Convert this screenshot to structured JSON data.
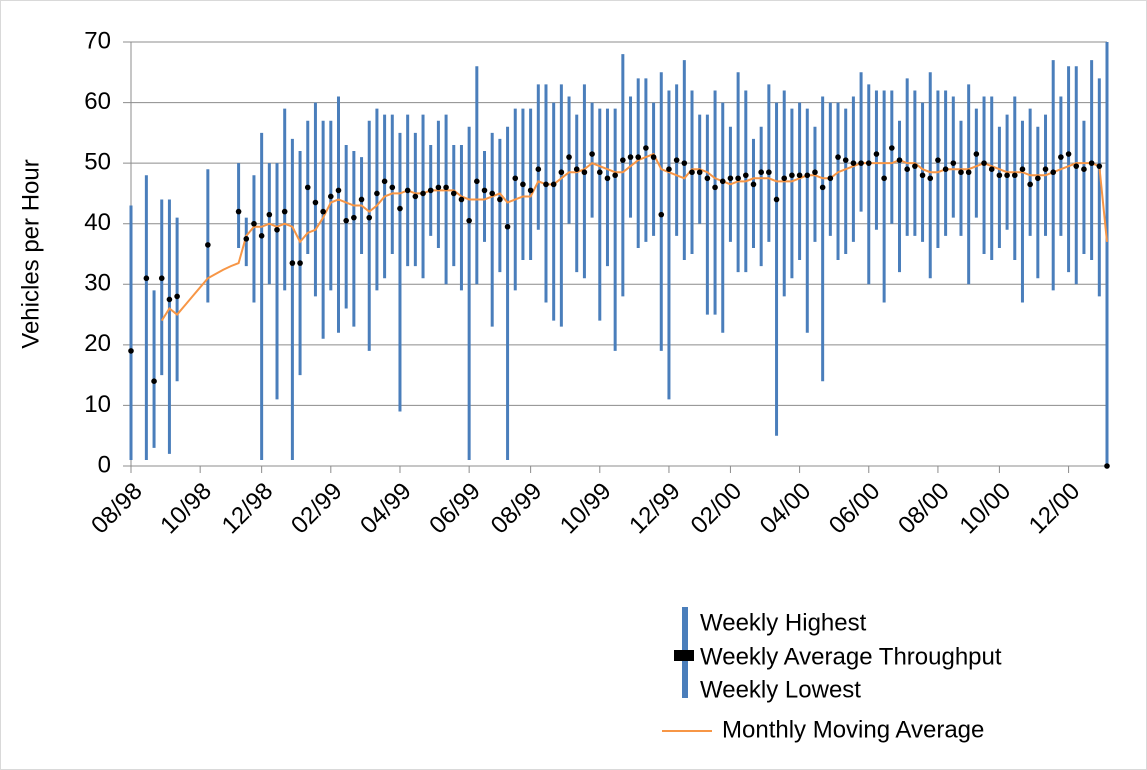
{
  "chart_data": {
    "type": "stock",
    "y_label": "Vehicles per Hour",
    "ylim": [
      0,
      70
    ],
    "yticks": [
      0,
      10,
      20,
      30,
      40,
      50,
      60,
      70
    ],
    "grid": true,
    "categories": [
      "08/98",
      null,
      null,
      null,
      null,
      null,
      null,
      null,
      null,
      "10/98",
      null,
      null,
      null,
      null,
      null,
      null,
      null,
      "12/98",
      null,
      null,
      null,
      null,
      null,
      null,
      null,
      null,
      "02/99",
      null,
      null,
      null,
      null,
      null,
      null,
      null,
      null,
      "04/99",
      null,
      null,
      null,
      null,
      null,
      null,
      null,
      null,
      "06/99",
      null,
      null,
      null,
      null,
      null,
      null,
      null,
      "08/99",
      null,
      null,
      null,
      null,
      null,
      null,
      null,
      null,
      "10/99",
      null,
      null,
      null,
      null,
      null,
      null,
      null,
      null,
      "12/99",
      null,
      null,
      null,
      null,
      null,
      null,
      null,
      "02/00",
      null,
      null,
      null,
      null,
      null,
      null,
      null,
      null,
      "04/00",
      null,
      null,
      null,
      null,
      null,
      null,
      null,
      null,
      "06/00",
      null,
      null,
      null,
      null,
      null,
      null,
      null,
      null,
      "08/00",
      null,
      null,
      null,
      null,
      null,
      null,
      null,
      "10/00",
      null,
      null,
      null,
      null,
      null,
      null,
      null,
      null,
      "12/00",
      null,
      null,
      null,
      null,
      null
    ],
    "series": [
      {
        "name": "Weekly Highest",
        "color": "#4a7ebb",
        "values": [
          43,
          null,
          48,
          29,
          44,
          44,
          41,
          null,
          null,
          null,
          49,
          null,
          null,
          null,
          50,
          41,
          48,
          55,
          50,
          50,
          59,
          54,
          52,
          57,
          60,
          57,
          57,
          61,
          53,
          52,
          51,
          57,
          59,
          58,
          58,
          55,
          58,
          55,
          58,
          53,
          57,
          58,
          53,
          53,
          56,
          66,
          52,
          55,
          54,
          56,
          59,
          59,
          59,
          63,
          63,
          60,
          63,
          61,
          58,
          63,
          60,
          59,
          59,
          59,
          68,
          61,
          64,
          64,
          60,
          65,
          62,
          63,
          67,
          62,
          58,
          58,
          62,
          60,
          56,
          65,
          62,
          54,
          56,
          63,
          60,
          62,
          59,
          60,
          59,
          56,
          61,
          60,
          60,
          59,
          61,
          65,
          63,
          62,
          62,
          62,
          57,
          64,
          62,
          60,
          65,
          62,
          62,
          61,
          57,
          63,
          59,
          61,
          61,
          56,
          58,
          61,
          57,
          59,
          56,
          58,
          67,
          61,
          66,
          66,
          57,
          67,
          64,
          70
        ]
      },
      {
        "name": "Weekly Average Throughput",
        "color": "#000000",
        "values": [
          19,
          null,
          31,
          14,
          31,
          27.5,
          28,
          null,
          null,
          null,
          36.5,
          null,
          null,
          null,
          42,
          37.5,
          40,
          38,
          41.5,
          39,
          42,
          33.5,
          33.5,
          46,
          43.5,
          42,
          44.5,
          45.5,
          40.5,
          41,
          44,
          41,
          45,
          47,
          46,
          42.5,
          45.5,
          44.5,
          45,
          45.5,
          46,
          46,
          45,
          44,
          40.5,
          47,
          45.5,
          45,
          44,
          39.5,
          47.5,
          46.5,
          45.5,
          49,
          46.5,
          46.5,
          48.5,
          51,
          49,
          48.5,
          51.5,
          48.5,
          47.5,
          48,
          50.5,
          51,
          51,
          52.5,
          51,
          41.5,
          49,
          50.5,
          50,
          48.5,
          48.5,
          47.5,
          46,
          47,
          47.5,
          47.5,
          48,
          46.5,
          48.5,
          48.5,
          44,
          47.5,
          48,
          48,
          48,
          48.5,
          46,
          47.5,
          51,
          50.5,
          50,
          50,
          50,
          51.5,
          47.5,
          52.5,
          50.5,
          49,
          49.5,
          48,
          47.5,
          50.5,
          49,
          50,
          48.5,
          48.5,
          51.5,
          50,
          49,
          48,
          48,
          48,
          49,
          46.5,
          47.5,
          49,
          48.5,
          51,
          51.5,
          49.5,
          49,
          50,
          49.5,
          0
        ]
      },
      {
        "name": "Weekly Lowest",
        "color": "#4a7ebb",
        "values": [
          1,
          null,
          1,
          3,
          15,
          2,
          14,
          null,
          null,
          null,
          27,
          null,
          null,
          null,
          36,
          33,
          27,
          1,
          30,
          11,
          29,
          1,
          15,
          35,
          28,
          21,
          29,
          22,
          26,
          23,
          35,
          19,
          29,
          31,
          35,
          9,
          33,
          33,
          31,
          38,
          36,
          30,
          33,
          29,
          1,
          30,
          37,
          23,
          32,
          1,
          29,
          34,
          34,
          39,
          27,
          24,
          23,
          40,
          32,
          31,
          41,
          24,
          33,
          19,
          28,
          41,
          36,
          37,
          38,
          19,
          11,
          38,
          34,
          35,
          40,
          25,
          25,
          22,
          37,
          32,
          32,
          36,
          33,
          37,
          5,
          28,
          31,
          34,
          22,
          37,
          14,
          38,
          34,
          35,
          37,
          42,
          30,
          39,
          27,
          40,
          32,
          38,
          38,
          37,
          31,
          36,
          38,
          41,
          38,
          30,
          41,
          35,
          34,
          36,
          39,
          34,
          27,
          38,
          31,
          38,
          29,
          38,
          32,
          30,
          35,
          34,
          28,
          0
        ]
      },
      {
        "name": "Monthly Moving Average",
        "color": "#f79646",
        "values": [
          null,
          null,
          null,
          null,
          24,
          26,
          25,
          26.5,
          28,
          29.5,
          31,
          31.7,
          32.4,
          33,
          33.5,
          38,
          39.5,
          39.5,
          40,
          39.5,
          40,
          39.5,
          37,
          38.5,
          39,
          41,
          43.5,
          44,
          43.5,
          43,
          43,
          42,
          43,
          44.5,
          45,
          45,
          45.5,
          45,
          45,
          45.5,
          45.5,
          45.5,
          45.5,
          44.5,
          44,
          44,
          44,
          44.5,
          45,
          43.5,
          44,
          44.5,
          44.5,
          47,
          46.5,
          46.5,
          47.5,
          48.5,
          48.5,
          49,
          50,
          49.5,
          49,
          48.5,
          48.5,
          49.5,
          50.5,
          51,
          51.5,
          49,
          48.5,
          48,
          47.5,
          49,
          49,
          48.5,
          47.5,
          47,
          46.5,
          47,
          47,
          47.5,
          47.5,
          47.5,
          47,
          47,
          47,
          47.5,
          48,
          48,
          47.5,
          47.5,
          48.5,
          49,
          49.5,
          50,
          50,
          50,
          50,
          50,
          50.5,
          50,
          50,
          49,
          48.5,
          48.5,
          49,
          49,
          49,
          49,
          49.5,
          50,
          49.5,
          49,
          48.5,
          48.5,
          48.5,
          48,
          48,
          48,
          48.5,
          49,
          49.5,
          50,
          50,
          50,
          49.5,
          37
        ]
      }
    ]
  }
}
